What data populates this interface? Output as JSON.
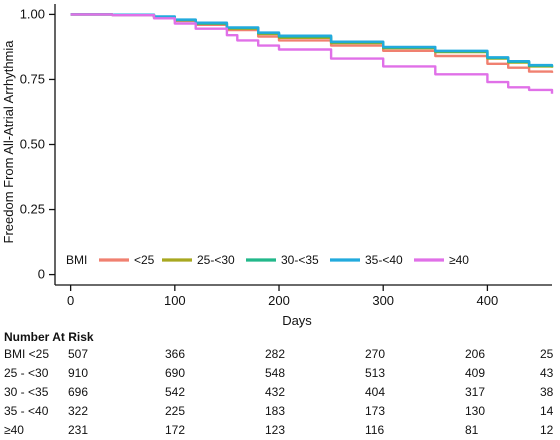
{
  "chart_data": {
    "type": "line",
    "title": "",
    "xlabel": "Days",
    "ylabel": "Freedom From All-Atrial Arrhythmia",
    "xlim": [
      -15,
      462
    ],
    "ylim": [
      -0.04,
      1.04
    ],
    "x_ticks": [
      0,
      100,
      200,
      300,
      400
    ],
    "y_ticks": [
      0,
      0.25,
      0.5,
      0.75,
      1.0
    ],
    "y_tick_labels": [
      "0",
      "0.25",
      "0.50",
      "0.75",
      "1.00"
    ],
    "grid": false,
    "legend": {
      "title": "BMI",
      "placement": "bottom-left",
      "entries": [
        "<25",
        "25-<30",
        "30-<35",
        "35-<40",
        "≥40"
      ]
    },
    "series": [
      {
        "name": "<25",
        "color": "#F08070",
        "x": [
          0,
          40,
          80,
          100,
          120,
          150,
          180,
          200,
          250,
          300,
          350,
          400,
          420,
          440,
          462
        ],
        "y": [
          1.0,
          0.998,
          0.99,
          0.975,
          0.96,
          0.94,
          0.915,
          0.9,
          0.88,
          0.86,
          0.84,
          0.81,
          0.795,
          0.78,
          0.775
        ]
      },
      {
        "name": "25-<30",
        "color": "#A8A820",
        "x": [
          0,
          40,
          80,
          100,
          120,
          150,
          180,
          200,
          250,
          300,
          350,
          400,
          420,
          440,
          462
        ],
        "y": [
          1.0,
          0.998,
          0.99,
          0.978,
          0.965,
          0.945,
          0.925,
          0.91,
          0.89,
          0.87,
          0.855,
          0.83,
          0.815,
          0.8,
          0.795
        ]
      },
      {
        "name": "30-<35",
        "color": "#22B88A",
        "x": [
          0,
          40,
          80,
          100,
          120,
          150,
          180,
          200,
          250,
          300,
          350,
          400,
          420,
          440,
          462
        ],
        "y": [
          1.0,
          0.998,
          0.99,
          0.978,
          0.965,
          0.948,
          0.928,
          0.915,
          0.893,
          0.873,
          0.858,
          0.833,
          0.818,
          0.803,
          0.798
        ]
      },
      {
        "name": "35-<40",
        "color": "#22AADD",
        "x": [
          0,
          40,
          80,
          100,
          120,
          150,
          180,
          200,
          250,
          300,
          350,
          400,
          420,
          440,
          462
        ],
        "y": [
          1.0,
          0.999,
          0.992,
          0.98,
          0.968,
          0.95,
          0.93,
          0.918,
          0.895,
          0.875,
          0.86,
          0.835,
          0.82,
          0.805,
          0.8
        ]
      },
      {
        "name": "≥40",
        "color": "#E070E8",
        "x": [
          0,
          40,
          80,
          100,
          120,
          150,
          160,
          180,
          200,
          250,
          300,
          350,
          400,
          420,
          440,
          462
        ],
        "y": [
          1.0,
          0.997,
          0.985,
          0.965,
          0.945,
          0.92,
          0.9,
          0.88,
          0.865,
          0.83,
          0.8,
          0.77,
          0.74,
          0.72,
          0.71,
          0.695
        ]
      }
    ]
  },
  "risk_table": {
    "title": "Number At Risk",
    "time_points": [
      0,
      100,
      200,
      300,
      400,
      462
    ],
    "rows": [
      {
        "label": "BMI <25",
        "values": [
          "507",
          "366",
          "282",
          "270",
          "206",
          "25"
        ]
      },
      {
        "label": "25 - <30",
        "values": [
          "910",
          "690",
          "548",
          "513",
          "409",
          "43"
        ]
      },
      {
        "label": "30 - <35",
        "values": [
          "696",
          "542",
          "432",
          "404",
          "317",
          "38"
        ]
      },
      {
        "label": "35 - <40",
        "values": [
          "322",
          "225",
          "183",
          "173",
          "130",
          "14"
        ]
      },
      {
        "label": "≥40",
        "values": [
          "231",
          "172",
          "123",
          "116",
          "81",
          "12"
        ]
      }
    ]
  }
}
